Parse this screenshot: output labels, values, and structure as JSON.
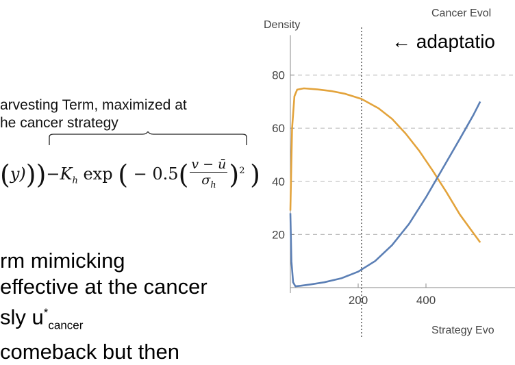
{
  "annotation": {
    "line1": "arvesting Term, maximized at",
    "line2": "he cancer strategy"
  },
  "formula": {
    "open_part": "y)",
    "minus": "−",
    "K": "K",
    "K_sub": "h",
    "exp": " exp",
    "neg_half": "− 0.5",
    "num_v": "v",
    "num_minus": " − ",
    "num_ubar": "ū",
    "den_sigma": "σ",
    "den_sub": "h",
    "power": "2"
  },
  "bullets": {
    "line1": "rm mimicking",
    "line2": " effective at the cancer",
    "line3_a": "sly u",
    "line3_sup": "*",
    "line3_sub": "cancer",
    "line4": " comeback but then"
  },
  "chart": {
    "title": "Cancer Evol",
    "bottom_title": "Strategy Evo",
    "annotation": "← adaptatio",
    "colors": {
      "orange": "#e3a33b",
      "blue": "#5b7fb5",
      "grid": "#bdbdbd",
      "axis": "#888888"
    }
  },
  "chart_data": {
    "type": "line",
    "ylabel": "Density",
    "xlim": [
      0,
      560
    ],
    "ylim": [
      0,
      95
    ],
    "x_ticks": [
      200,
      400
    ],
    "y_ticks": [
      20,
      40,
      60,
      80
    ],
    "vline_x": 210,
    "series": [
      {
        "color": "orange",
        "x": [
          0,
          5,
          12,
          20,
          40,
          80,
          120,
          160,
          210,
          260,
          300,
          340,
          380,
          420,
          460,
          500,
          540,
          560
        ],
        "y": [
          29,
          60,
          72,
          74.5,
          75,
          74.6,
          74,
          73,
          71,
          67.5,
          63.5,
          58,
          51.5,
          44,
          36,
          27.5,
          20.5,
          17
        ]
      },
      {
        "color": "blue",
        "x": [
          0,
          3,
          8,
          15,
          30,
          60,
          100,
          150,
          200,
          250,
          300,
          350,
          400,
          450,
          500,
          540,
          560
        ],
        "y": [
          28,
          10,
          2,
          0.5,
          0.7,
          1.2,
          2,
          3.5,
          6,
          10,
          16,
          24,
          34,
          45,
          56,
          65,
          70
        ]
      }
    ]
  }
}
